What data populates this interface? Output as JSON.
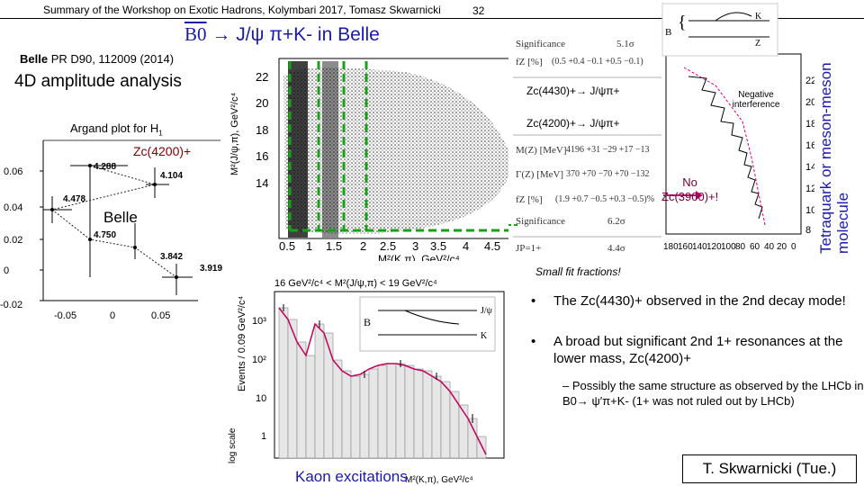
{
  "header": {
    "summary": "Summary of the Workshop on Exotic Hadrons, Kolymbari 2017, Tomasz Skwarnicki",
    "page_number": "32"
  },
  "title": {
    "b0": "B0",
    "rest": "→ J/ψ π+K- in Belle"
  },
  "reference": {
    "experiment": "Belle",
    "citation": " PR D90, 112009 (2014)"
  },
  "analysis_label": "4D amplitude analysis",
  "argand": {
    "title": "Argand plot for H",
    "title_sub": "1",
    "resonance_label": "Zc(4200)+",
    "belle_label": "Belle",
    "points": [
      "4.288",
      "4.104",
      "4.478",
      "4.750",
      "3.842",
      "3.919"
    ],
    "y_ticks": [
      "0.06",
      "0.04",
      "0.02",
      "0",
      "-0.02"
    ],
    "x_ticks": [
      "-0.05",
      "0",
      "0.05"
    ]
  },
  "dalitz": {
    "ylabel": "M²(J/ψ,π), GeV²/c⁴",
    "xlabel": "M²(K,π), GeV²/c⁴",
    "y_ticks": [
      "22",
      "20",
      "18",
      "16",
      "14"
    ],
    "x_ticks": [
      "0.5",
      "1",
      "1.5",
      "2",
      "2.5",
      "3",
      "3.5",
      "4",
      "4.5"
    ]
  },
  "zc_labels": {
    "zc4430": "Zc(4430)+→ J/ψπ+",
    "zc4200": "Zc(4200)+→ J/ψπ+"
  },
  "results_table": {
    "rows": [
      {
        "label": "Significance",
        "value": "5.1σ"
      },
      {
        "label": "fZ [%]",
        "value": "(0.5 +0.4 −0.1 +0.5 −0.1)"
      },
      {
        "label": "M(Z) [MeV]",
        "value": "4196 +31 −29 +17 −13"
      },
      {
        "label": "Γ(Z) [MeV]",
        "value": "370 +70 −70 +70 −132"
      },
      {
        "label": "fZ [%]",
        "value": "(1.9 +0.7 −0.5 +0.3 −0.5)%"
      },
      {
        "label": "Significance",
        "value": "6.2σ"
      },
      {
        "label": "JP=1+",
        "value": "4.4σ"
      }
    ]
  },
  "projection": {
    "negative_interference": "Negative interference",
    "no_zc": "No",
    "no_zc2": "Zc(3900)+!",
    "y_ticks": [
      "22",
      "20",
      "18",
      "16",
      "14",
      "12",
      "10",
      "8"
    ],
    "x_ticks": [
      "180",
      "160",
      "140",
      "120",
      "100",
      "80",
      "60",
      "40",
      "20",
      "0"
    ]
  },
  "tetra_label": "Tetraquark or meson-meson molecule",
  "small_fit": "Small fit fractions!",
  "bullets": [
    "The Zc(4430)+ observed in the 2nd decay mode!",
    "A broad but significant 2nd 1+ resonances at the lower mass, Zc(4200)+"
  ],
  "sub_bullet": "– Possibly the same structure as observed by the LHCb in B0→ ψ′π+K- (1+ was not ruled out by LHCb)",
  "lower_plot": {
    "title": "16 GeV²/c⁴ < M²(J/ψ,π) < 19 GeV²/c⁴",
    "ylabel": "Events / 0.09 GeV²/c⁴",
    "xlabel": "M²(K,π), GeV²/c⁴",
    "log_scale": "log scale",
    "y_ticks": [
      "10³",
      "10²",
      "10",
      "1"
    ],
    "kaon_label": "Kaon excitations"
  },
  "author": "T. Skwarnicki (Tue.)",
  "colors": {
    "accent": "#1a1aa8",
    "highlight": "#d4007a",
    "green_dash": "#18a018"
  }
}
